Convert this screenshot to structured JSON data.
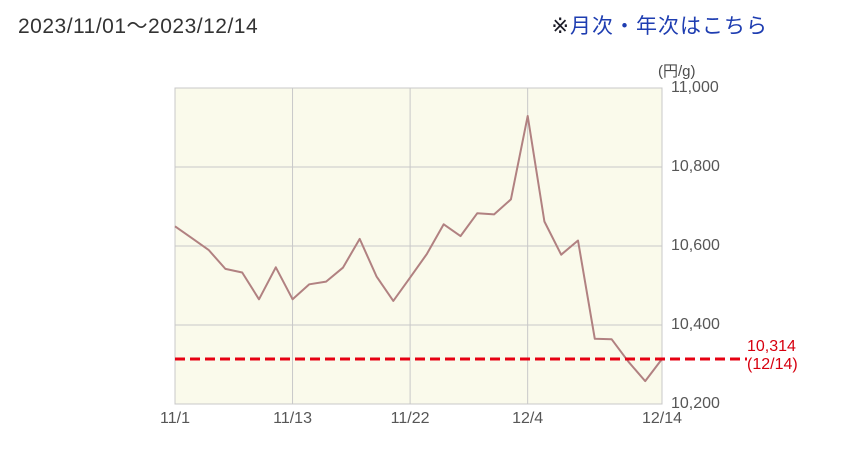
{
  "header": {
    "title": "2023/11/01～2023/12/14",
    "link_prefix": "※",
    "link_text": "月次・年次はこちら"
  },
  "chart_data": {
    "type": "line",
    "unit_label": "(円/g)",
    "x": [
      "11/1",
      "11/2",
      "11/6",
      "11/7",
      "11/8",
      "11/9",
      "11/10",
      "11/13",
      "11/14",
      "11/15",
      "11/16",
      "11/17",
      "11/20",
      "11/21",
      "11/22",
      "11/24",
      "11/27",
      "11/28",
      "11/29",
      "11/30",
      "12/1",
      "12/4",
      "12/5",
      "12/6",
      "12/7",
      "12/8",
      "12/11",
      "12/12",
      "12/13",
      "12/14"
    ],
    "values": [
      10650,
      10620,
      10590,
      10542,
      10533,
      10465,
      10546,
      10465,
      10503,
      10510,
      10545,
      10618,
      10523,
      10461,
      10520,
      10580,
      10655,
      10625,
      10683,
      10680,
      10718,
      10929,
      10662,
      10578,
      10614,
      10365,
      10364,
      10307,
      10258,
      10314
    ],
    "ylim": [
      10200,
      11000
    ],
    "grid": true,
    "y_ticks": [
      11000,
      10800,
      10600,
      10400,
      10200
    ],
    "y_tick_labels": [
      "11,000",
      "10,800",
      "10,600",
      "10,400",
      "10,200"
    ],
    "x_tick_indices": [
      0,
      7,
      14,
      21,
      29
    ],
    "x_tick_labels": [
      "11/1",
      "11/13",
      "11/22",
      "12/4",
      "12/14"
    ],
    "annotation": {
      "value": 10314,
      "label_value": "10,314",
      "label_date": "(12/14)"
    },
    "colors": {
      "line": "#b18181",
      "plot_bg": "#fafaeb",
      "grid": "#c8c8c8",
      "annotation_line": "#e60012",
      "annotation_text": "#d7000f",
      "link": "#1e3db1"
    }
  }
}
